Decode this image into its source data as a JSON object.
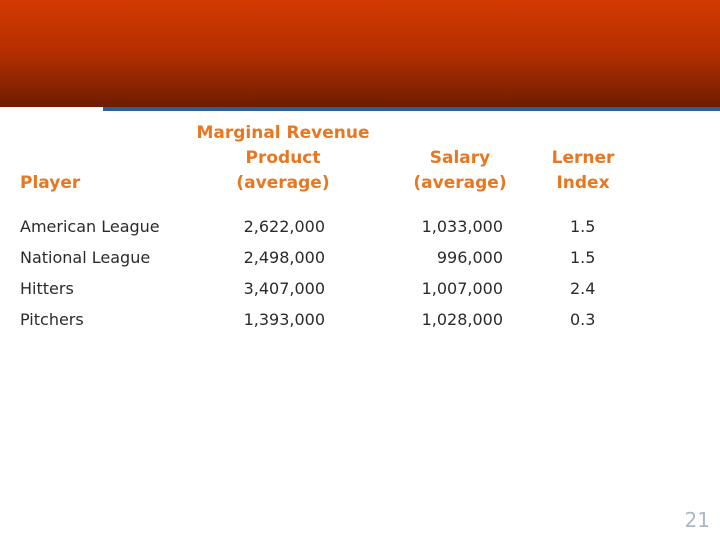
{
  "table": {
    "headers": {
      "player": "Player",
      "mrp": [
        "Marginal Revenue",
        "Product",
        "(average)"
      ],
      "salary": [
        "Salary",
        "(average)"
      ],
      "lerner": [
        "Lerner",
        "Index"
      ]
    },
    "rows": [
      {
        "player": "American League",
        "mrp": "2,622,000",
        "salary": "1,033,000",
        "lerner": "1.5"
      },
      {
        "player": "National League",
        "mrp": "2,498,000",
        "salary": "996,000",
        "lerner": "1.5"
      },
      {
        "player": "Hitters",
        "mrp": "3,407,000",
        "salary": "1,007,000",
        "lerner": "2.4"
      },
      {
        "player": "Pitchers",
        "mrp": "1,393,000",
        "salary": "1,028,000",
        "lerner": "0.3"
      }
    ]
  },
  "slide": {
    "page_number": "21"
  },
  "colors": {
    "header_band": "#b83000",
    "accent_rule": "#2a5fa0",
    "heading_text": "#e87722",
    "body_text": "#2b2b2b"
  }
}
